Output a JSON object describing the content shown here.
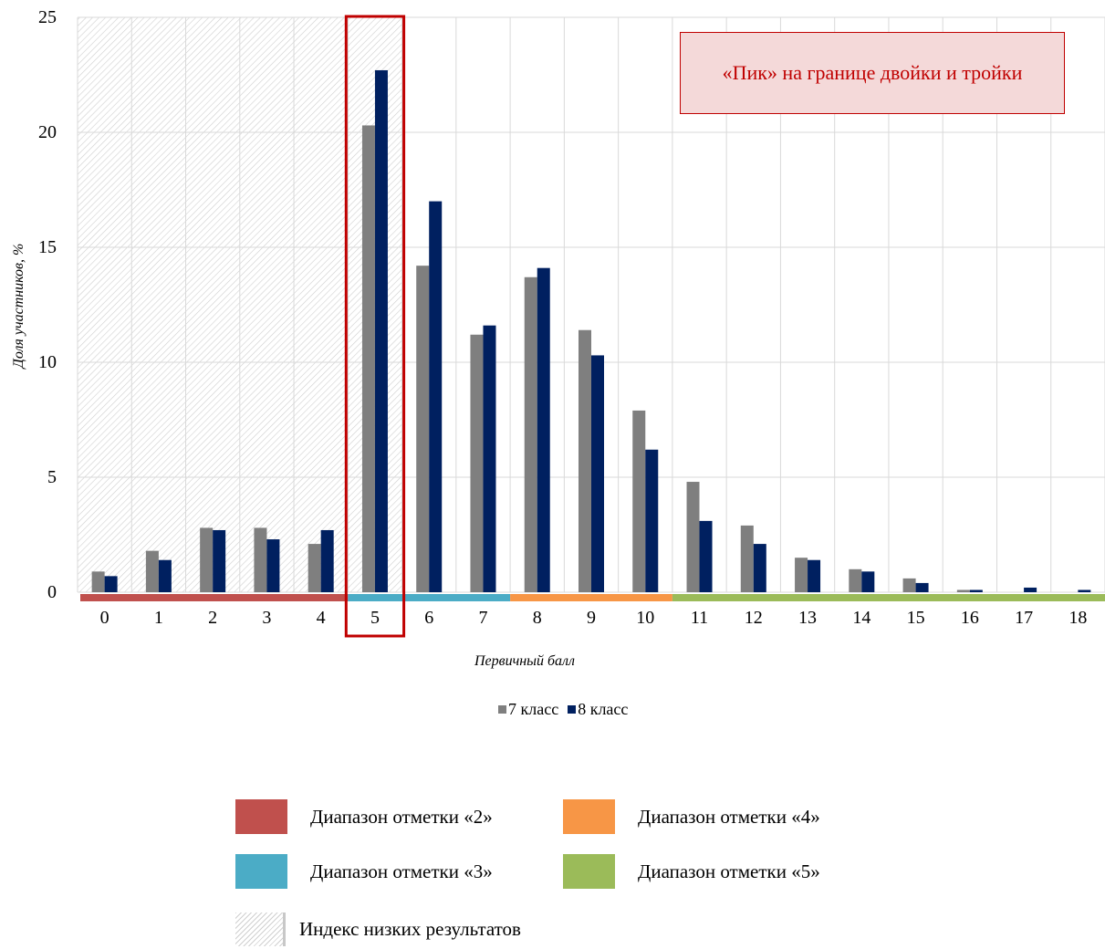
{
  "chart_data": {
    "type": "bar",
    "ylabel": "Доля участников, %",
    "xlabel": "Первичный балл",
    "ylim": [
      0,
      25
    ],
    "yticks": [
      0,
      5,
      10,
      15,
      20,
      25
    ],
    "categories": [
      "0",
      "1",
      "2",
      "3",
      "4",
      "5",
      "6",
      "7",
      "8",
      "9",
      "10",
      "11",
      "12",
      "13",
      "14",
      "15",
      "16",
      "17",
      "18"
    ],
    "series": [
      {
        "name": "7 класс",
        "color": "#7f7f7f",
        "values": [
          0.9,
          1.8,
          2.8,
          2.8,
          2.1,
          20.3,
          14.2,
          11.2,
          13.7,
          11.4,
          7.9,
          4.8,
          2.9,
          1.5,
          1.0,
          0.6,
          0.1,
          0.0,
          0.0
        ]
      },
      {
        "name": "8 класс",
        "color": "#002060",
        "values": [
          0.7,
          1.4,
          2.7,
          2.3,
          2.7,
          22.7,
          17.0,
          11.6,
          14.1,
          10.3,
          6.2,
          3.1,
          2.1,
          1.4,
          0.9,
          0.4,
          0.1,
          0.2,
          0.1
        ]
      }
    ],
    "grid": true,
    "legend_position": "bottom",
    "annotation": "«Пик» на границе двойки и тройки",
    "highlighted_category": "5",
    "low_results_index_range": [
      0,
      5
    ],
    "grade_ranges": [
      {
        "label": "Диапазон отметки «2»",
        "color": "#c0504d",
        "from": 0,
        "to": 4
      },
      {
        "label": "Диапазон отметки «3»",
        "color": "#4bacc6",
        "from": 5,
        "to": 7
      },
      {
        "label": "Диапазон отметки «4»",
        "color": "#f79646",
        "from": 8,
        "to": 10
      },
      {
        "label": "Диапазон отметки «5»",
        "color": "#9bbb59",
        "from": 11,
        "to": 18
      }
    ],
    "low_results_label": "Индекс низких результатов",
    "highlight_color": "#c00000"
  }
}
